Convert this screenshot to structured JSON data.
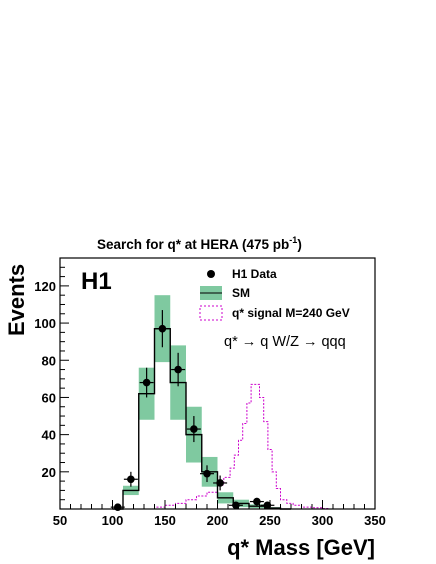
{
  "chart_data": {
    "type": "histogram",
    "title": "Search for q* at HERA (475 pb",
    "title_superscript": "-1",
    "title_suffix": ")",
    "experiment_label": "H1",
    "xlabel": "q* Mass [GeV]",
    "ylabel": "Events",
    "xlim": [
      50,
      350
    ],
    "ylim": [
      0,
      135
    ],
    "x_ticks": [
      50,
      100,
      150,
      200,
      250,
      300,
      350
    ],
    "y_ticks": [
      20,
      40,
      60,
      80,
      100,
      120
    ],
    "legend": {
      "placement": "top-right",
      "entries": [
        "H1 Data",
        "SM",
        "q* signal M=240 GeV"
      ]
    },
    "annotation": "q* → q W/Z → qqq",
    "data": {
      "name": "H1 Data",
      "x": [
        105,
        117.5,
        132.5,
        147.5,
        162.5,
        177.5,
        190,
        202.5,
        217.5,
        237.5,
        247.5
      ],
      "y": [
        1,
        16,
        68,
        97,
        75,
        43,
        19,
        14,
        2,
        4,
        2
      ],
      "yerr": [
        1,
        4,
        8,
        10,
        9,
        7,
        4.5,
        4,
        1.4,
        2,
        1.4
      ]
    },
    "sm": {
      "name": "SM",
      "bin_edges": [
        110,
        125,
        140,
        155,
        170,
        185,
        200,
        215,
        230,
        245,
        260
      ],
      "values": [
        10,
        62,
        97,
        68,
        40,
        20,
        6,
        3,
        1.5,
        0.5
      ],
      "err": [
        2.5,
        14,
        18,
        20,
        15,
        8,
        3,
        2,
        1,
        0.5
      ],
      "color": "#7fc9a0"
    },
    "signal": {
      "name": "q* signal M=240 GeV",
      "color": "#cc00cc",
      "x": [
        127,
        140,
        150,
        160,
        170,
        180,
        190,
        200,
        206,
        212,
        216,
        220,
        224,
        228,
        232,
        236,
        240,
        244,
        248,
        252,
        256,
        260,
        266,
        272,
        280,
        290,
        300,
        306
      ],
      "y": [
        0,
        1,
        2,
        3,
        5,
        7,
        9,
        13,
        17,
        22,
        29,
        37,
        46,
        57,
        67,
        67,
        60,
        47,
        32,
        20,
        11,
        5,
        3,
        2,
        1,
        0.7,
        0.3,
        0
      ]
    }
  }
}
